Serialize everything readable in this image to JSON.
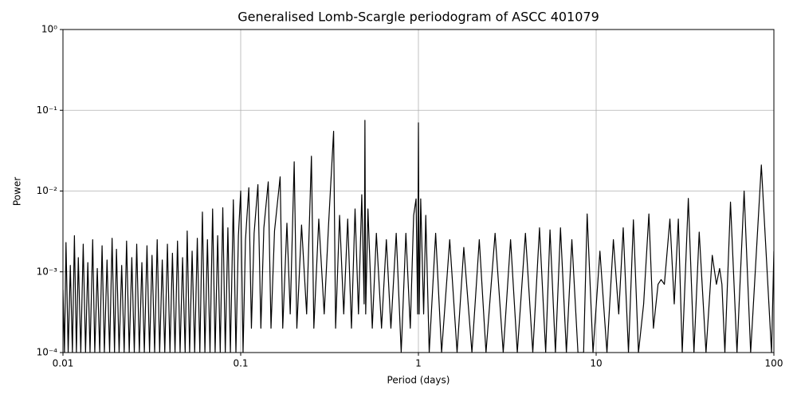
{
  "chart_data": {
    "type": "line",
    "title": "Generalised Lomb-Scargle periodogram of ASCC 401079",
    "x_label": "Period (days)",
    "y_label": "Power",
    "xscale": "log",
    "yscale": "log",
    "grid": true,
    "color": "#000000",
    "xlim": [
      0.01,
      100
    ],
    "ylim": [
      0.0001,
      1
    ],
    "xticks": [
      0.01,
      0.1,
      1,
      10,
      100
    ],
    "yticks": [
      {
        "value": 0.0001,
        "label": "10⁻⁴"
      },
      {
        "value": 0.001,
        "label": "10⁻³"
      },
      {
        "value": 0.01,
        "label": "10⁻²"
      },
      {
        "value": 0.1,
        "label": "10⁻¹"
      },
      {
        "value": 1,
        "label": "10⁰"
      }
    ],
    "x": [
      0.01,
      0.0102,
      0.0104,
      0.0107,
      0.011,
      0.0113,
      0.0116,
      0.0119,
      0.0122,
      0.0126,
      0.013,
      0.0134,
      0.0138,
      0.0142,
      0.0147,
      0.0151,
      0.0156,
      0.0161,
      0.0166,
      0.0171,
      0.0177,
      0.0183,
      0.0189,
      0.0195,
      0.02,
      0.0207,
      0.0214,
      0.0221,
      0.0228,
      0.0236,
      0.0244,
      0.0252,
      0.026,
      0.0269,
      0.0278,
      0.0287,
      0.0297,
      0.0307,
      0.0317,
      0.0328,
      0.0339,
      0.035,
      0.0362,
      0.0374,
      0.0387,
      0.04,
      0.0413,
      0.0427,
      0.0441,
      0.0456,
      0.0471,
      0.0487,
      0.05,
      0.0516,
      0.0533,
      0.0551,
      0.057,
      0.0589,
      0.0609,
      0.0629,
      0.065,
      0.0672,
      0.0695,
      0.0718,
      0.0742,
      0.0767,
      0.0793,
      0.0819,
      0.0847,
      0.0875,
      0.0909,
      0.094,
      0.0971,
      0.1,
      0.1031,
      0.1064,
      0.1111,
      0.1149,
      0.119,
      0.125,
      0.1299,
      0.135,
      0.1429,
      0.1481,
      0.155,
      0.1667,
      0.1724,
      0.182,
      0.19,
      0.2,
      0.207,
      0.22,
      0.235,
      0.25,
      0.258,
      0.275,
      0.295,
      0.3125,
      0.3333,
      0.342,
      0.36,
      0.38,
      0.4,
      0.42,
      0.44,
      0.46,
      0.48,
      0.495,
      0.5,
      0.505,
      0.52,
      0.55,
      0.58,
      0.62,
      0.66,
      0.7,
      0.75,
      0.8,
      0.85,
      0.9,
      0.94,
      0.97,
      0.99,
      1.0,
      1.01,
      1.03,
      1.07,
      1.1,
      1.15,
      1.25,
      1.35,
      1.5,
      1.65,
      1.8,
      2.0,
      2.2,
      2.4,
      2.7,
      3.0,
      3.3,
      3.6,
      4.0,
      4.4,
      4.8,
      5.2,
      5.5,
      5.9,
      6.3,
      6.8,
      7.3,
      7.9,
      8.5,
      8.9,
      9.6,
      10.5,
      11.5,
      12.5,
      13.4,
      14.2,
      15.2,
      16.2,
      17.3,
      18.5,
      19.8,
      21,
      22.3,
      23.2,
      24.2,
      26,
      27.5,
      29,
      30.5,
      33,
      35.5,
      38,
      41.5,
      45,
      47.5,
      49.5,
      51,
      53,
      57,
      62,
      68,
      74,
      85,
      97,
      100
    ],
    "values": [
      0.0006,
      0.0001,
      0.0023,
      0.0001,
      0.0012,
      0.0001,
      0.0028,
      0.0001,
      0.0015,
      0.0001,
      0.0022,
      0.0001,
      0.0013,
      0.0001,
      0.0025,
      0.0001,
      0.0011,
      0.0001,
      0.0021,
      0.0001,
      0.0014,
      0.0001,
      0.0026,
      0.0001,
      0.0019,
      0.0001,
      0.0012,
      0.0001,
      0.0024,
      0.0001,
      0.0015,
      0.0001,
      0.0022,
      0.0001,
      0.0013,
      0.0001,
      0.0021,
      0.0001,
      0.0016,
      0.0001,
      0.0025,
      0.0001,
      0.0014,
      0.0001,
      0.0022,
      0.0001,
      0.0017,
      0.0001,
      0.0024,
      0.0001,
      0.0015,
      0.0001,
      0.0032,
      0.0001,
      0.0018,
      0.0001,
      0.0026,
      0.0001,
      0.0055,
      0.0001,
      0.0025,
      0.0001,
      0.006,
      0.0001,
      0.0028,
      0.0001,
      0.0062,
      0.0001,
      0.0035,
      0.0001,
      0.0078,
      0.0001,
      0.0028,
      0.01,
      0.0001,
      0.0025,
      0.011,
      0.0002,
      0.003,
      0.012,
      0.0002,
      0.0035,
      0.013,
      0.0002,
      0.0032,
      0.015,
      0.0002,
      0.004,
      0.0003,
      0.023,
      0.0002,
      0.0038,
      0.0003,
      0.027,
      0.0002,
      0.0045,
      0.0003,
      0.004,
      0.055,
      0.0002,
      0.005,
      0.0003,
      0.0045,
      0.0002,
      0.006,
      0.0003,
      0.009,
      0.0004,
      0.075,
      0.0003,
      0.006,
      0.0002,
      0.003,
      0.0002,
      0.0025,
      0.0002,
      0.003,
      0.0001,
      0.003,
      0.0002,
      0.005,
      0.008,
      0.0003,
      0.07,
      0.0003,
      0.008,
      0.0003,
      0.005,
      0.0001,
      0.003,
      0.0001,
      0.0025,
      0.0001,
      0.002,
      0.0001,
      0.0025,
      0.0001,
      0.003,
      0.0001,
      0.0025,
      0.0001,
      0.003,
      0.0001,
      0.0035,
      0.0001,
      0.0033,
      0.0001,
      0.0035,
      0.0001,
      0.0025,
      0.0001,
      0.0001,
      0.0052,
      0.0001,
      0.0018,
      0.0001,
      0.0025,
      0.0003,
      0.0035,
      0.0001,
      0.0044,
      0.0001,
      0.0004,
      0.0052,
      0.0002,
      0.0007,
      0.0008,
      0.0007,
      0.0045,
      0.0004,
      0.0045,
      0.0001,
      0.0081,
      0.0001,
      0.0031,
      0.0001,
      0.0016,
      0.0007,
      0.0011,
      0.0007,
      0.0001,
      0.0073,
      0.0001,
      0.01,
      0.0001,
      0.021,
      0.0001,
      0.0018
    ]
  }
}
